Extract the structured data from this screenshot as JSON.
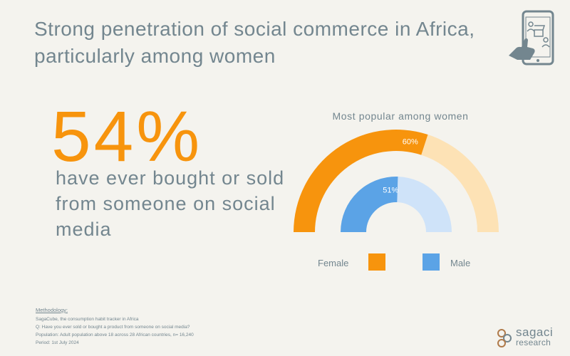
{
  "header": {
    "title": "Strong penetration of social commerce in Africa, particularly among women"
  },
  "headline": {
    "percent": "54%",
    "description": "have ever bought or sold from someone on social media"
  },
  "chart_data": {
    "type": "donut",
    "title": "Most popular among women",
    "series": [
      {
        "name": "Female",
        "value": 60,
        "label": "60%",
        "color": "#f7940d",
        "remainder_color": "#fde2b5"
      },
      {
        "name": "Male",
        "value": 51,
        "label": "51%",
        "color": "#5ba3e6",
        "remainder_color": "#cfe3f9"
      }
    ],
    "range": [
      0,
      100
    ],
    "legend_position": "bottom"
  },
  "methodology": {
    "heading": "Methodology:",
    "lines": [
      "SagaCube, the consumption habit tracker in Africa",
      "Q: Have you ever sold or bought a product from someone on social media?",
      "Population: Adult population above 18 across 28 African countries, n= 16,240",
      "Period: 1st July 2024"
    ]
  },
  "logo": {
    "line1": "sagaci",
    "line2": "research"
  },
  "colors": {
    "accent_orange": "#f7940d",
    "text_gray": "#73868f",
    "accent_blue": "#5ba3e6",
    "background": "#f4f3ee"
  },
  "icons": [
    "phone-shopping-icon",
    "sagaci-logo-icon"
  ]
}
